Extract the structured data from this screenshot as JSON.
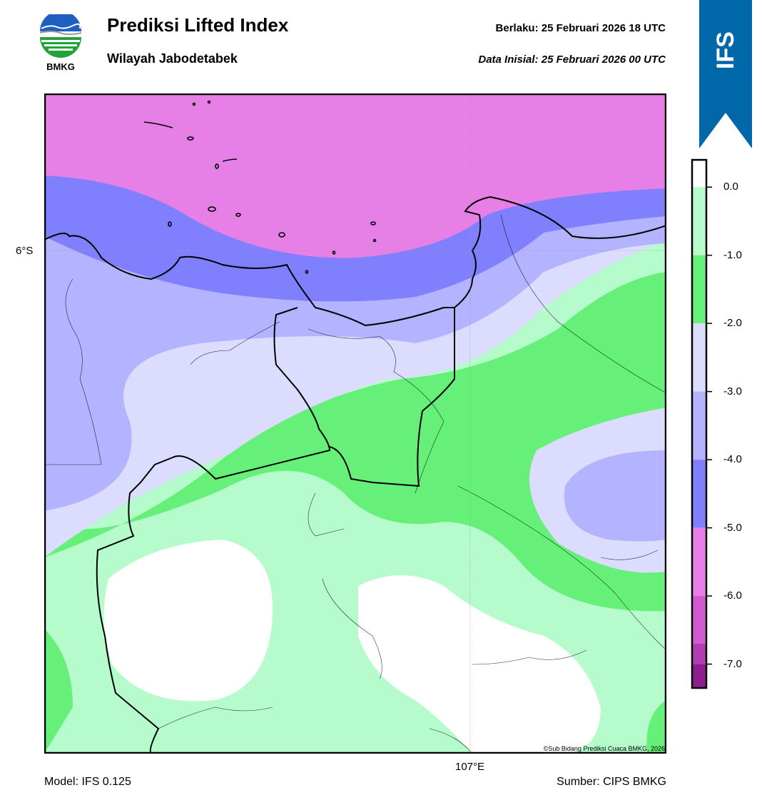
{
  "header": {
    "title": "Prediksi Lifted Index",
    "subtitle": "Wilayah Jabodetabek",
    "valid": "Berlaku:  25 Februari 2026 18 UTC",
    "initial": "Data Inisial:  25 Februari 2026 00 UTC"
  },
  "logo": {
    "text": "BMKG",
    "icon": "bmkg-logo"
  },
  "badge": {
    "text": "IFS",
    "color": "#0068a8"
  },
  "map": {
    "lat_label": "6°S",
    "lon_label": "107°E",
    "copyright": "©Sub Bidang Prediksi Cuaca BMKG, 2026",
    "colors": {
      "lt_-5_to_-6": "#e680e6",
      "lt_-4_to_-5": "#8080ff",
      "lt_-3_to_-4": "#b3b3ff",
      "lt_-2_to_-3": "#dcdcff",
      "lt_-1_to_-2": "#66f07a",
      "lt_0_to_-1": "#b5fbcb",
      "gt_0": "#ffffff"
    }
  },
  "colorbar": {
    "ticks": [
      "0.0",
      "-1.0",
      "-2.0",
      "-3.0",
      "-4.0",
      "-5.0",
      "-6.0",
      "-7.0"
    ],
    "colors": [
      "#ffffff",
      "#b5fbcb",
      "#66f07a",
      "#dcdcff",
      "#b3b3ff",
      "#8080ff",
      "#e680e6",
      "#d15ad1",
      "#b13eb1",
      "#8e1e8e"
    ]
  },
  "footer": {
    "model": "Model: IFS 0.125",
    "source": "Sumber: CIPS BMKG"
  }
}
